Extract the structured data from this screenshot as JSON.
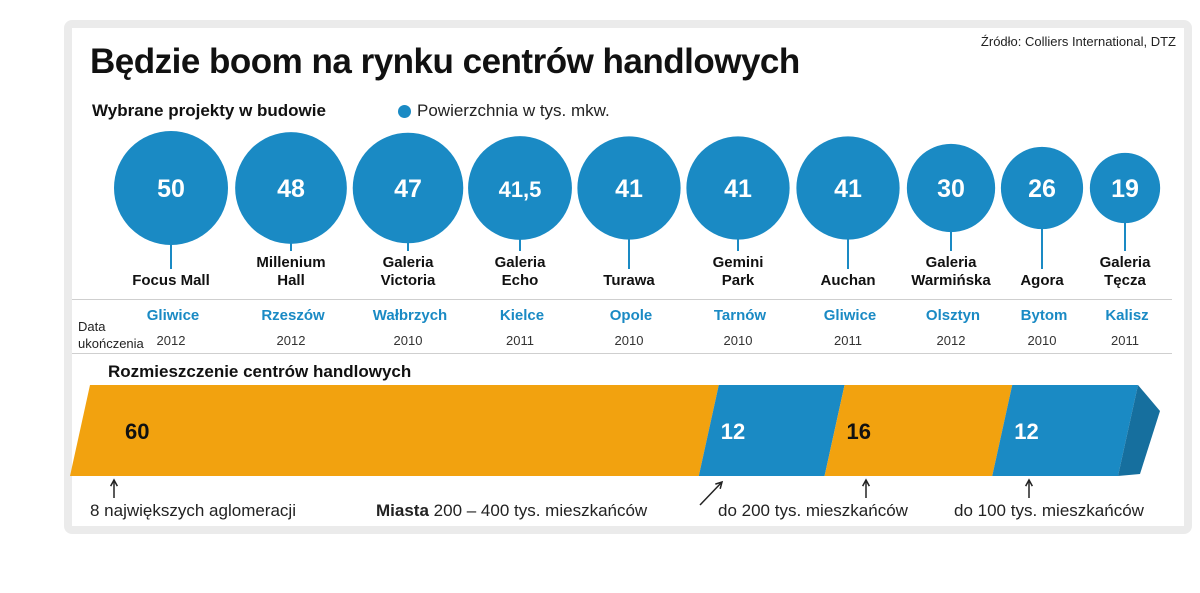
{
  "source": "Źródło: Colliers International, DTZ",
  "title": "Będzie boom na rynku centrów handlowych",
  "subtitle": "Wybrane projekty w budowie",
  "legend": "Powierzchnia w tys. mkw.",
  "date_caption_line1": "Data",
  "date_caption_line2": "ukończenia",
  "distribution_title": "Rozmieszczenie centrów handlowych",
  "colors": {
    "blue": "#1a8ac4",
    "orange": "#f2a20f",
    "blue_dark": "#166f9e",
    "orange_dark": "#c98307"
  },
  "chart_data": [
    {
      "type": "bubble",
      "title": "Wybrane projekty w budowie",
      "legend": "Powierzchnia w tys. mkw.",
      "items": [
        {
          "value_label": "50",
          "value": 50,
          "name": [
            "Focus Mall"
          ],
          "city": "Gliwice",
          "year": "2012"
        },
        {
          "value_label": "48",
          "value": 48,
          "name": [
            "Millenium",
            "Hall"
          ],
          "city": "Rzeszów",
          "year": "2012"
        },
        {
          "value_label": "47",
          "value": 47,
          "name": [
            "Galeria",
            "Victoria"
          ],
          "city": "Wałbrzych",
          "year": "2010"
        },
        {
          "value_label": "41,5",
          "value": 41.5,
          "name": [
            "Galeria",
            "Echo"
          ],
          "city": "Kielce",
          "year": "2011"
        },
        {
          "value_label": "41",
          "value": 41,
          "name": [
            "Turawa"
          ],
          "city": "Opole",
          "year": "2010"
        },
        {
          "value_label": "41",
          "value": 41,
          "name": [
            "Gemini",
            "Park"
          ],
          "city": "Tarnów",
          "year": "2010"
        },
        {
          "value_label": "41",
          "value": 41,
          "name": [
            "Auchan"
          ],
          "city": "Gliwice",
          "year": "2011"
        },
        {
          "value_label": "30",
          "value": 30,
          "name": [
            "Galeria",
            "Warmińska"
          ],
          "city": "Olsztyn",
          "year": "2012"
        },
        {
          "value_label": "26",
          "value": 26,
          "name": [
            "Agora"
          ],
          "city": "Bytom",
          "year": "2010"
        },
        {
          "value_label": "19",
          "value": 19,
          "name": [
            "Galeria",
            "Tęcza"
          ],
          "city": "Kalisz",
          "year": "2011"
        }
      ]
    },
    {
      "type": "stacked_bar",
      "title": "Rozmieszczenie centrów handlowych",
      "segments": [
        {
          "value": 60,
          "label": "8 największych aglomeracji",
          "color": "orange"
        },
        {
          "value": 12,
          "label_bold": "Miasta",
          "label": "200 – 400 tys. mieszkańców",
          "color": "blue"
        },
        {
          "value": 16,
          "label": "do 200 tys. mieszkańców",
          "color": "orange"
        },
        {
          "value": 12,
          "label": "do 100 tys. mieszkańców",
          "color": "blue"
        }
      ]
    }
  ]
}
